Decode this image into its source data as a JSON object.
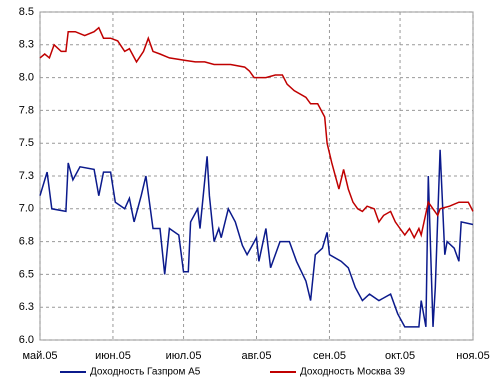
{
  "chart_data": {
    "type": "line",
    "xlim": [
      0,
      184
    ],
    "xticks": [
      {
        "value": 0,
        "label": "май.05"
      },
      {
        "value": 31,
        "label": "июн.05"
      },
      {
        "value": 61,
        "label": "июл.05"
      },
      {
        "value": 92,
        "label": "авг.05"
      },
      {
        "value": 123,
        "label": "сен.05"
      },
      {
        "value": 153,
        "label": "окт.05"
      },
      {
        "value": 184,
        "label": "ноя.05"
      }
    ],
    "ylim": [
      6,
      8.5
    ],
    "yticks": [
      {
        "value": 6,
        "label": "6.0"
      },
      {
        "value": 6.25,
        "label": "6.3"
      },
      {
        "value": 6.5,
        "label": "6.5"
      },
      {
        "value": 6.75,
        "label": "6.8"
      },
      {
        "value": 7,
        "label": "7.0"
      },
      {
        "value": 7.25,
        "label": "7.3"
      },
      {
        "value": 7.5,
        "label": "7.5"
      },
      {
        "value": 7.75,
        "label": "7.8"
      },
      {
        "value": 8,
        "label": "8.0"
      },
      {
        "value": 8.25,
        "label": "8.3"
      },
      {
        "value": 8.5,
        "label": "8.5"
      }
    ],
    "grid": true,
    "legend": "bottom",
    "series": [
      {
        "name": "Доходность Газпром А5",
        "color": "#0b1a8c",
        "x": [
          0,
          3,
          5,
          11,
          12,
          14,
          17,
          23,
          25,
          27,
          30,
          32,
          36,
          38,
          40,
          43,
          45,
          48,
          51,
          53,
          55,
          59,
          61,
          63,
          64,
          67,
          68,
          71,
          72,
          74,
          76,
          77,
          80,
          83,
          86,
          88,
          92,
          93,
          96,
          98,
          102,
          106,
          109,
          113,
          115,
          117,
          120,
          122,
          123,
          128,
          131,
          134,
          137,
          140,
          144,
          149,
          152,
          155,
          161,
          162,
          164,
          165,
          167,
          168,
          170,
          172,
          173,
          176,
          178,
          179,
          184
        ],
        "values": [
          7.1,
          7.28,
          7.0,
          6.98,
          7.35,
          7.22,
          7.32,
          7.3,
          7.1,
          7.28,
          7.28,
          7.05,
          7.0,
          7.08,
          6.9,
          7.1,
          7.25,
          6.85,
          6.85,
          6.5,
          6.85,
          6.8,
          6.52,
          6.52,
          6.9,
          7.0,
          6.85,
          7.4,
          7.1,
          6.75,
          6.85,
          6.78,
          7.0,
          6.9,
          6.72,
          6.65,
          6.78,
          6.6,
          6.85,
          6.55,
          6.75,
          6.75,
          6.6,
          6.45,
          6.3,
          6.65,
          6.7,
          6.82,
          6.65,
          6.6,
          6.55,
          6.4,
          6.3,
          6.35,
          6.3,
          6.35,
          6.2,
          6.1,
          6.1,
          6.3,
          6.1,
          7.25,
          6.1,
          6.4,
          7.45,
          6.65,
          6.75,
          6.7,
          6.6,
          6.9,
          6.88
        ]
      },
      {
        "name": "Доходность Москва 39",
        "color": "#c00000",
        "x": [
          0,
          2,
          4,
          6,
          9,
          11,
          12,
          15,
          19,
          23,
          25,
          27,
          30,
          33,
          36,
          38,
          41,
          44,
          46,
          48,
          51,
          55,
          62,
          66,
          70,
          74,
          81,
          87,
          89,
          91,
          96,
          100,
          103,
          105,
          108,
          113,
          115,
          118,
          121,
          122,
          124,
          127,
          129,
          131,
          133,
          135,
          137,
          139,
          142,
          144,
          146,
          149,
          151,
          153,
          155,
          157,
          159,
          161,
          162,
          165,
          167,
          169,
          170,
          174,
          178,
          182,
          184
        ],
        "values": [
          8.15,
          8.18,
          8.15,
          8.25,
          8.2,
          8.2,
          8.35,
          8.35,
          8.32,
          8.35,
          8.38,
          8.3,
          8.3,
          8.28,
          8.2,
          8.22,
          8.12,
          8.2,
          8.3,
          8.2,
          8.18,
          8.15,
          8.13,
          8.12,
          8.12,
          8.1,
          8.1,
          8.08,
          8.05,
          8.0,
          8.0,
          8.02,
          8.02,
          7.95,
          7.9,
          7.85,
          7.8,
          7.8,
          7.7,
          7.5,
          7.35,
          7.15,
          7.3,
          7.15,
          7.05,
          7.0,
          6.98,
          7.02,
          7.0,
          6.9,
          6.95,
          6.98,
          6.9,
          6.85,
          6.8,
          6.85,
          6.78,
          6.85,
          6.8,
          7.05,
          7.0,
          6.95,
          7.0,
          7.02,
          7.05,
          7.05,
          6.98
        ]
      }
    ]
  }
}
